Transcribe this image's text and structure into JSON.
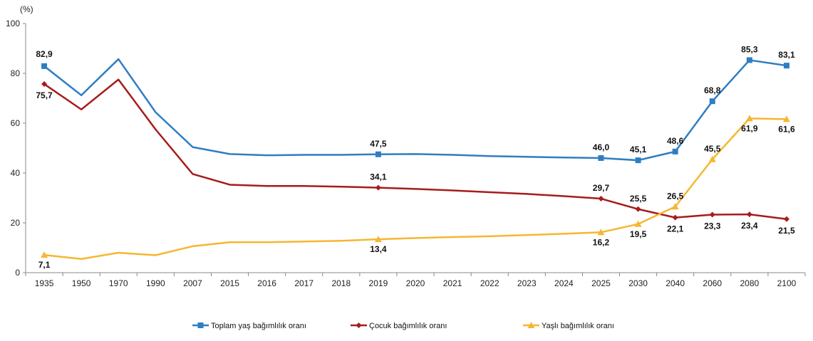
{
  "chart_data": {
    "type": "line",
    "ylabel": "(%)",
    "ylim": [
      0,
      100
    ],
    "yticks": [
      0,
      20,
      40,
      60,
      80,
      100
    ],
    "grid": false,
    "legend_placement": "bottom",
    "categories": [
      "1935",
      "1950",
      "1970",
      "1990",
      "2007",
      "2015",
      "2016",
      "2017",
      "2018",
      "2019",
      "2020",
      "2021",
      "2022",
      "2023",
      "2024",
      "2025",
      "2030",
      "2040",
      "2060",
      "2080",
      "2100"
    ],
    "series": [
      {
        "name": "Toplam yaş bağımlılık oranı",
        "color": "#2E7EC2",
        "marker": "square",
        "values": [
          82.9,
          71.2,
          85.7,
          64.4,
          50.4,
          47.6,
          47.1,
          47.3,
          47.3,
          47.5,
          47.6,
          47.3,
          46.8,
          46.5,
          46.2,
          46.0,
          45.1,
          48.6,
          68.8,
          85.3,
          83.1
        ],
        "labels": [
          "82,9",
          null,
          null,
          null,
          null,
          null,
          null,
          null,
          null,
          "47,5",
          null,
          null,
          null,
          null,
          null,
          "46,0",
          "45,1",
          "48,6",
          "68,8",
          "85,3",
          "83,1"
        ]
      },
      {
        "name": "Çocuk bağımlılık oranı",
        "color": "#A61C1C",
        "marker": "diamond",
        "values": [
          75.7,
          65.5,
          77.5,
          57.5,
          39.6,
          35.3,
          34.8,
          34.8,
          34.5,
          34.1,
          33.6,
          33.0,
          32.3,
          31.6,
          30.7,
          29.7,
          25.5,
          22.1,
          23.3,
          23.4,
          21.5
        ],
        "labels": [
          "75,7",
          null,
          null,
          null,
          null,
          null,
          null,
          null,
          null,
          "34,1",
          null,
          null,
          null,
          null,
          null,
          "29,7",
          "25,5",
          "22,1",
          "23,3",
          "23,4",
          "21,5"
        ]
      },
      {
        "name": "Yaşlı bağımlılık oranı",
        "color": "#F5B731",
        "marker": "triangle",
        "values": [
          7.1,
          5.5,
          8.0,
          7.0,
          10.6,
          12.2,
          12.2,
          12.5,
          12.8,
          13.4,
          13.9,
          14.3,
          14.6,
          15.1,
          15.6,
          16.2,
          19.5,
          26.5,
          45.5,
          61.9,
          61.6
        ],
        "labels": [
          "7,1",
          null,
          null,
          null,
          null,
          null,
          null,
          null,
          null,
          "13,4",
          null,
          null,
          null,
          null,
          null,
          "16,2",
          "19,5",
          "26,5",
          "45,5",
          "61,9",
          "61,6"
        ]
      }
    ]
  }
}
